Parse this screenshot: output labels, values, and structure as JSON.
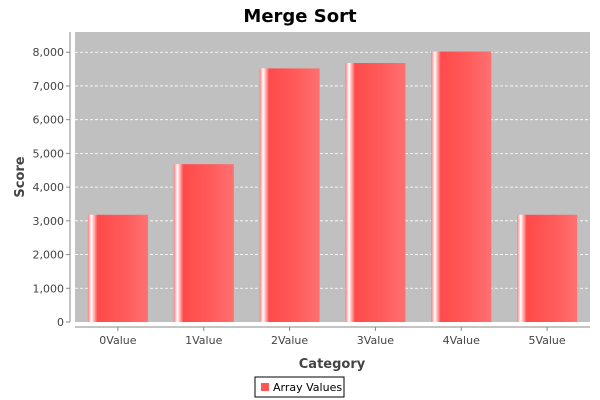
{
  "chart_data": {
    "type": "bar",
    "title": "Merge Sort",
    "xlabel": "Category",
    "ylabel": "Score",
    "categories": [
      "0Value",
      "1Value",
      "2Value",
      "3Value",
      "4Value",
      "5Value"
    ],
    "series": [
      {
        "name": "Array Values",
        "values": [
          3180,
          4680,
          7520,
          7680,
          8020,
          3180
        ]
      }
    ],
    "ylim": [
      0,
      8600
    ],
    "yticks": [
      0,
      1000,
      2000,
      3000,
      4000,
      5000,
      6000,
      7000,
      8000
    ],
    "ytick_labels": [
      "0",
      "1,000",
      "2,000",
      "3,000",
      "4,000",
      "5,000",
      "6,000",
      "7,000",
      "8,000"
    ],
    "grid": true,
    "legend_position": "bottom",
    "colors": {
      "bar": "#ff5555",
      "plot_background": "#c0c0c0",
      "grid": "#ffffff"
    }
  }
}
